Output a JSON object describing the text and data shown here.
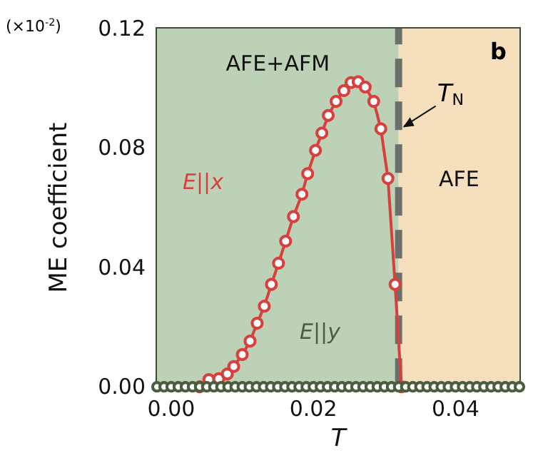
{
  "chart_data": {
    "type": "line",
    "xlabel": "T",
    "ylabel": "ME coefficient",
    "xlim": [
      -0.002,
      0.049
    ],
    "ylim": [
      0,
      0.12
    ],
    "xticks": [
      {
        "value": 0.0,
        "label": "0.00"
      },
      {
        "value": 0.01,
        "label": null
      },
      {
        "value": 0.02,
        "label": "0.02"
      },
      {
        "value": 0.03,
        "label": null
      },
      {
        "value": 0.04,
        "label": "0.04"
      }
    ],
    "yticks": [
      {
        "value": 0.0,
        "label": "0.00"
      },
      {
        "value": 0.02,
        "label": null
      },
      {
        "value": 0.04,
        "label": "0.04"
      },
      {
        "value": 0.06,
        "label": null
      },
      {
        "value": 0.08,
        "label": "0.08"
      },
      {
        "value": 0.1,
        "label": null
      },
      {
        "value": 0.12,
        "label": "0.12"
      }
    ],
    "grid": false,
    "legend": false,
    "marker": "circle",
    "line_style": "solid",
    "series": [
      {
        "name": "E||x",
        "color": "#d8403e",
        "x": [
          0.004,
          0.0053,
          0.0067,
          0.0079,
          0.0088,
          0.01,
          0.0111,
          0.0121,
          0.0131,
          0.0141,
          0.0151,
          0.0161,
          0.0172,
          0.0184,
          0.0192,
          0.0203,
          0.0212,
          0.0221,
          0.0232,
          0.0243,
          0.0253,
          0.0263,
          0.0273,
          0.0285,
          0.0295,
          0.0305,
          0.0315,
          0.0324
        ],
        "values": [
          0,
          0.0024,
          0.0027,
          0.0043,
          0.0068,
          0.0108,
          0.0153,
          0.0213,
          0.027,
          0.0343,
          0.0414,
          0.0488,
          0.057,
          0.0645,
          0.0714,
          0.0792,
          0.085,
          0.0909,
          0.0956,
          0.0992,
          0.1019,
          0.1022,
          0.1004,
          0.0956,
          0.0864,
          0.0698,
          0.0343,
          0
        ]
      },
      {
        "name": "E||y",
        "color": "#4a5e3f",
        "x": [
          -0.002,
          -0.001,
          0,
          0.001,
          0.002,
          0.003,
          0.004,
          0.005,
          0.006,
          0.007,
          0.008,
          0.009,
          0.01,
          0.011,
          0.012,
          0.013,
          0.014,
          0.015,
          0.016,
          0.017,
          0.018,
          0.019,
          0.02,
          0.021,
          0.022,
          0.023,
          0.024,
          0.025,
          0.026,
          0.027,
          0.028,
          0.029,
          0.03,
          0.031,
          0.032,
          0.033,
          0.034,
          0.035,
          0.036,
          0.037,
          0.038,
          0.039,
          0.04,
          0.041,
          0.042,
          0.043,
          0.044,
          0.045,
          0.046,
          0.047,
          0.048,
          0.049
        ],
        "values": [
          0,
          0,
          0,
          0,
          0,
          0,
          0,
          0,
          0,
          0,
          0,
          0,
          0,
          0,
          0,
          0,
          0,
          0,
          0,
          0,
          0,
          0,
          0,
          0,
          0,
          0,
          0,
          0,
          0,
          0,
          0,
          0,
          0,
          0,
          0,
          0,
          0,
          0,
          0,
          0,
          0,
          0,
          0,
          0,
          0,
          0,
          0,
          0,
          0,
          0,
          0,
          0
        ]
      }
    ],
    "bands": [
      {
        "axis": "x",
        "from": -0.002,
        "to": 0.032,
        "label": "AFE+AFM",
        "color": "#bdd1b7"
      },
      {
        "axis": "x",
        "from": 0.032,
        "to": 0.049,
        "label": "AFE",
        "color": "#f6dfbd"
      }
    ],
    "ref_lines": [
      {
        "axis": "x",
        "value": 0.032,
        "label": "T$_{N}$",
        "color": "#6b6f6a",
        "line_style": "dashed"
      }
    ],
    "annotations": [
      "(×10$^{-2}$)",
      "b"
    ]
  }
}
